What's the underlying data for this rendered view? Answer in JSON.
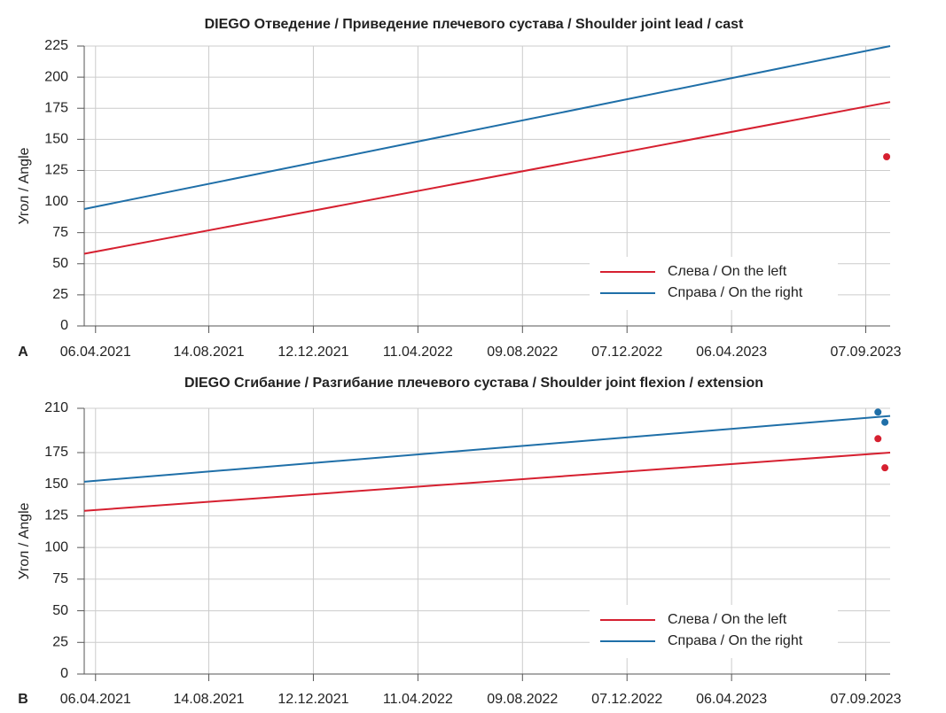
{
  "chart_data": [
    {
      "type": "line",
      "panel": "A",
      "title": "DIEGO Отведение / Приведение плечевого сустава / Shoulder joint lead / cast",
      "y_label": "Угол / Angle",
      "xlim": [
        "24.03.2021",
        "05.10.2023"
      ],
      "xticks": [
        "06.04.2021",
        "14.08.2021",
        "12.12.2021",
        "11.04.2022",
        "09.08.2022",
        "07.12.2022",
        "06.04.2023",
        "07.09.2023"
      ],
      "ylim": [
        0,
        225
      ],
      "yticks": [
        0,
        25,
        50,
        75,
        100,
        125,
        150,
        175,
        200,
        225
      ],
      "grid": true,
      "legend": "lower right",
      "series": [
        {
          "name": "Слева / On the left",
          "color": "#d62030",
          "x": [
            "24.03.2021",
            "05.10.2023"
          ],
          "values": [
            58,
            180
          ]
        },
        {
          "name": "Справа / On the right",
          "color": "#1f6fa8",
          "x": [
            "24.03.2021",
            "05.10.2023"
          ],
          "values": [
            94,
            225
          ]
        }
      ],
      "points": [
        {
          "color": "#d62030",
          "x": [
            "01.10.2023"
          ],
          "values": [
            136
          ]
        }
      ]
    },
    {
      "type": "line",
      "panel": "B",
      "title": "DIEGO Сгибание / Разгибание плечевого сустава / Shoulder joint flexion / extension",
      "y_label": "Угол / Angle",
      "xlim": [
        "24.03.2021",
        "05.10.2023"
      ],
      "xticks": [
        "06.04.2021",
        "14.08.2021",
        "12.12.2021",
        "11.04.2022",
        "09.08.2022",
        "07.12.2022",
        "06.04.2023",
        "07.09.2023"
      ],
      "ylim": [
        0,
        210
      ],
      "yticks": [
        0,
        25,
        50,
        75,
        100,
        125,
        150,
        175,
        210
      ],
      "grid": true,
      "legend": "lower right",
      "series": [
        {
          "name": "Слева / On the left",
          "color": "#d62030",
          "x": [
            "24.03.2021",
            "05.10.2023"
          ],
          "values": [
            129,
            175
          ]
        },
        {
          "name": "Справа / On the right",
          "color": "#1f6fa8",
          "x": [
            "24.03.2021",
            "05.10.2023"
          ],
          "values": [
            152,
            204
          ]
        }
      ],
      "points": [
        {
          "color": "#d62030",
          "x": [
            "21.09.2023",
            "29.09.2023"
          ],
          "values": [
            186,
            163
          ]
        },
        {
          "color": "#1f6fa8",
          "x": [
            "21.09.2023",
            "29.09.2023"
          ],
          "values": [
            207,
            199
          ]
        }
      ]
    }
  ]
}
